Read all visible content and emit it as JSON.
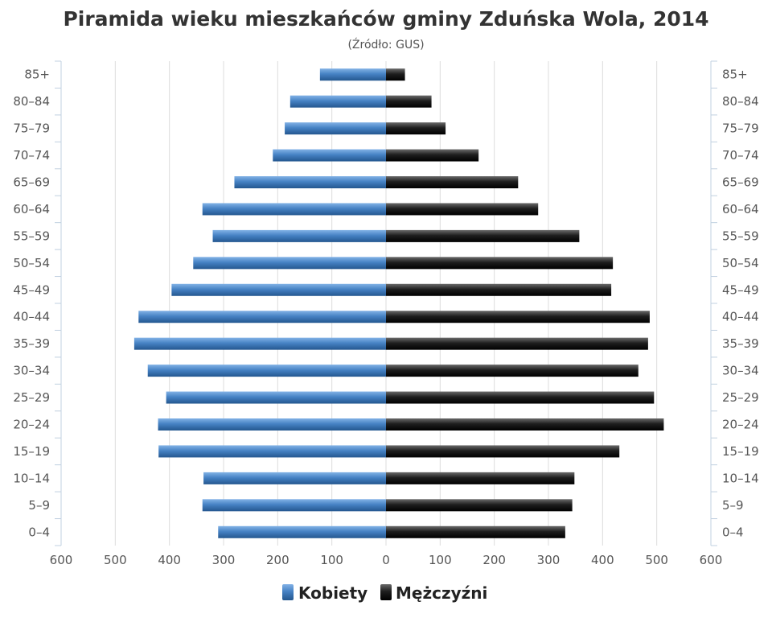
{
  "chart_data": {
    "type": "bar",
    "orientation": "horizontal",
    "title": "Piramida wieku mieszkańców gminy Zduńska Wola, 2014",
    "subtitle": "(Źródło: GUS)",
    "categories": [
      "85+",
      "80–84",
      "75–79",
      "70–74",
      "65–69",
      "60–64",
      "55–59",
      "50–54",
      "45–49",
      "40–44",
      "35–39",
      "30–34",
      "25–29",
      "20–24",
      "15–19",
      "10–14",
      "5–9",
      "0–4"
    ],
    "series": [
      {
        "name": "Kobiety",
        "color": "#3a73b3",
        "values": [
          122,
          177,
          187,
          209,
          280,
          339,
          320,
          356,
          396,
          457,
          465,
          440,
          406,
          421,
          420,
          337,
          339,
          310
        ]
      },
      {
        "name": "Mężczyźni",
        "color": "#1a1a1a",
        "values": [
          35,
          84,
          110,
          171,
          244,
          281,
          357,
          419,
          416,
          487,
          484,
          466,
          495,
          513,
          431,
          348,
          344,
          331
        ]
      }
    ],
    "xlim": [
      -600,
      600
    ],
    "x_ticks": [
      {
        "value": -600,
        "label": "600"
      },
      {
        "value": -500,
        "label": "500"
      },
      {
        "value": -400,
        "label": "400"
      },
      {
        "value": -300,
        "label": "300"
      },
      {
        "value": -200,
        "label": "200"
      },
      {
        "value": -100,
        "label": "100"
      },
      {
        "value": 0,
        "label": "0"
      },
      {
        "value": 100,
        "label": "100"
      },
      {
        "value": 200,
        "label": "200"
      },
      {
        "value": 300,
        "label": "300"
      },
      {
        "value": 400,
        "label": "400"
      },
      {
        "value": 500,
        "label": "500"
      },
      {
        "value": 600,
        "label": "600"
      }
    ],
    "grid": true,
    "legend_position": "bottom-center"
  }
}
